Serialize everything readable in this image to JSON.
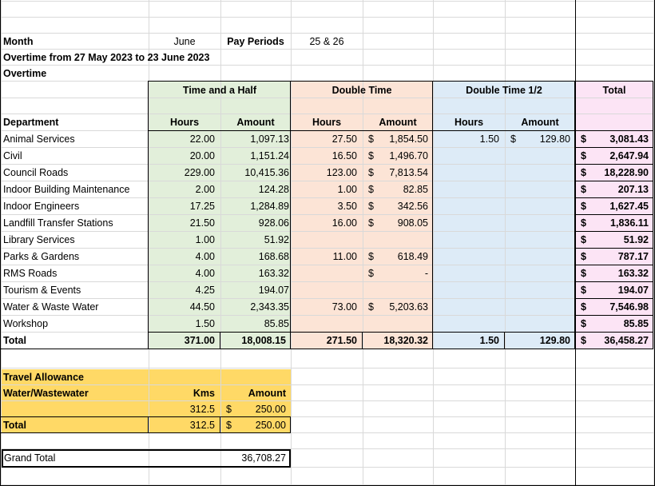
{
  "header": {
    "month_label": "Month",
    "month_value": "June",
    "pay_periods_label": "Pay Periods",
    "pay_periods_value": "25 & 26",
    "overtime_range": "Overtime from 27 May 2023 to 23 June 2023",
    "overtime_title": "Overtime"
  },
  "groups": {
    "time_and_half": "Time and a Half",
    "double_time": "Double Time",
    "double_time_half": "Double Time 1/2",
    "total": "Total"
  },
  "columns": {
    "department": "Department",
    "hours": "Hours",
    "amount": "Amount"
  },
  "currency": "$",
  "rows": [
    {
      "dept": "Animal Services",
      "th_hours": "22.00",
      "th_amount": "1,097.13",
      "dt_hours": "27.50",
      "dt_cur": "$",
      "dt_amount": "1,854.50",
      "dth_hours": "1.50",
      "dth_cur": "$",
      "dth_amount": "129.80",
      "total": "3,081.43"
    },
    {
      "dept": "Civil",
      "th_hours": "20.00",
      "th_amount": "1,151.24",
      "dt_hours": "16.50",
      "dt_cur": "$",
      "dt_amount": "1,496.70",
      "dth_hours": "",
      "dth_cur": "",
      "dth_amount": "",
      "total": "2,647.94"
    },
    {
      "dept": "Council Roads",
      "th_hours": "229.00",
      "th_amount": "10,415.36",
      "dt_hours": "123.00",
      "dt_cur": "$",
      "dt_amount": "7,813.54",
      "dth_hours": "",
      "dth_cur": "",
      "dth_amount": "",
      "total": "18,228.90"
    },
    {
      "dept": "Indoor Building Maintenance",
      "th_hours": "2.00",
      "th_amount": "124.28",
      "dt_hours": "1.00",
      "dt_cur": "$",
      "dt_amount": "82.85",
      "dth_hours": "",
      "dth_cur": "",
      "dth_amount": "",
      "total": "207.13"
    },
    {
      "dept": "Indoor Engineers",
      "th_hours": "17.25",
      "th_amount": "1,284.89",
      "dt_hours": "3.50",
      "dt_cur": "$",
      "dt_amount": "342.56",
      "dth_hours": "",
      "dth_cur": "",
      "dth_amount": "",
      "total": "1,627.45"
    },
    {
      "dept": "Landfill Transfer Stations",
      "th_hours": "21.50",
      "th_amount": "928.06",
      "dt_hours": "16.00",
      "dt_cur": "$",
      "dt_amount": "908.05",
      "dth_hours": "",
      "dth_cur": "",
      "dth_amount": "",
      "total": "1,836.11"
    },
    {
      "dept": "Library Services",
      "th_hours": "1.00",
      "th_amount": "51.92",
      "dt_hours": "",
      "dt_cur": "",
      "dt_amount": "",
      "dth_hours": "",
      "dth_cur": "",
      "dth_amount": "",
      "total": "51.92"
    },
    {
      "dept": "Parks & Gardens",
      "th_hours": "4.00",
      "th_amount": "168.68",
      "dt_hours": "11.00",
      "dt_cur": "$",
      "dt_amount": "618.49",
      "dth_hours": "",
      "dth_cur": "",
      "dth_amount": "",
      "total": "787.17"
    },
    {
      "dept": "RMS Roads",
      "th_hours": "4.00",
      "th_amount": "163.32",
      "dt_hours": "",
      "dt_cur": "$",
      "dt_amount": "-",
      "dth_hours": "",
      "dth_cur": "",
      "dth_amount": "",
      "total": "163.32"
    },
    {
      "dept": "Tourism & Events",
      "th_hours": "4.25",
      "th_amount": "194.07",
      "dt_hours": "",
      "dt_cur": "",
      "dt_amount": "",
      "dth_hours": "",
      "dth_cur": "",
      "dth_amount": "",
      "total": "194.07"
    },
    {
      "dept": "Water & Waste Water",
      "th_hours": "44.50",
      "th_amount": "2,343.35",
      "dt_hours": "73.00",
      "dt_cur": "$",
      "dt_amount": "5,203.63",
      "dth_hours": "",
      "dth_cur": "",
      "dth_amount": "",
      "total": "7,546.98"
    },
    {
      "dept": "Workshop",
      "th_hours": "1.50",
      "th_amount": "85.85",
      "dt_hours": "",
      "dt_cur": "",
      "dt_amount": "",
      "dth_hours": "",
      "dth_cur": "",
      "dth_amount": "",
      "total": "85.85"
    }
  ],
  "totals": {
    "label": "Total",
    "th_hours": "371.00",
    "th_amount": "18,008.15",
    "dt_hours": "271.50",
    "dt_amount": "18,320.32",
    "dth_hours": "1.50",
    "dth_amount": "129.80",
    "total": "36,458.27"
  },
  "travel": {
    "title": "Travel Allowance",
    "subtitle": "Water/Wastewater",
    "kms_label": "Kms",
    "amount_label": "Amount",
    "kms": "312.5",
    "amount": "250.00",
    "total_label": "Total",
    "total_kms": "312.5",
    "total_amount": "250.00"
  },
  "grand_total": {
    "label": "Grand Total",
    "value": "36,708.27"
  },
  "colors": {
    "green": "#e2efda",
    "peach": "#fce4d6",
    "blue": "#ddebf7",
    "pink": "#fce4f5",
    "yellow": "#ffd966"
  }
}
